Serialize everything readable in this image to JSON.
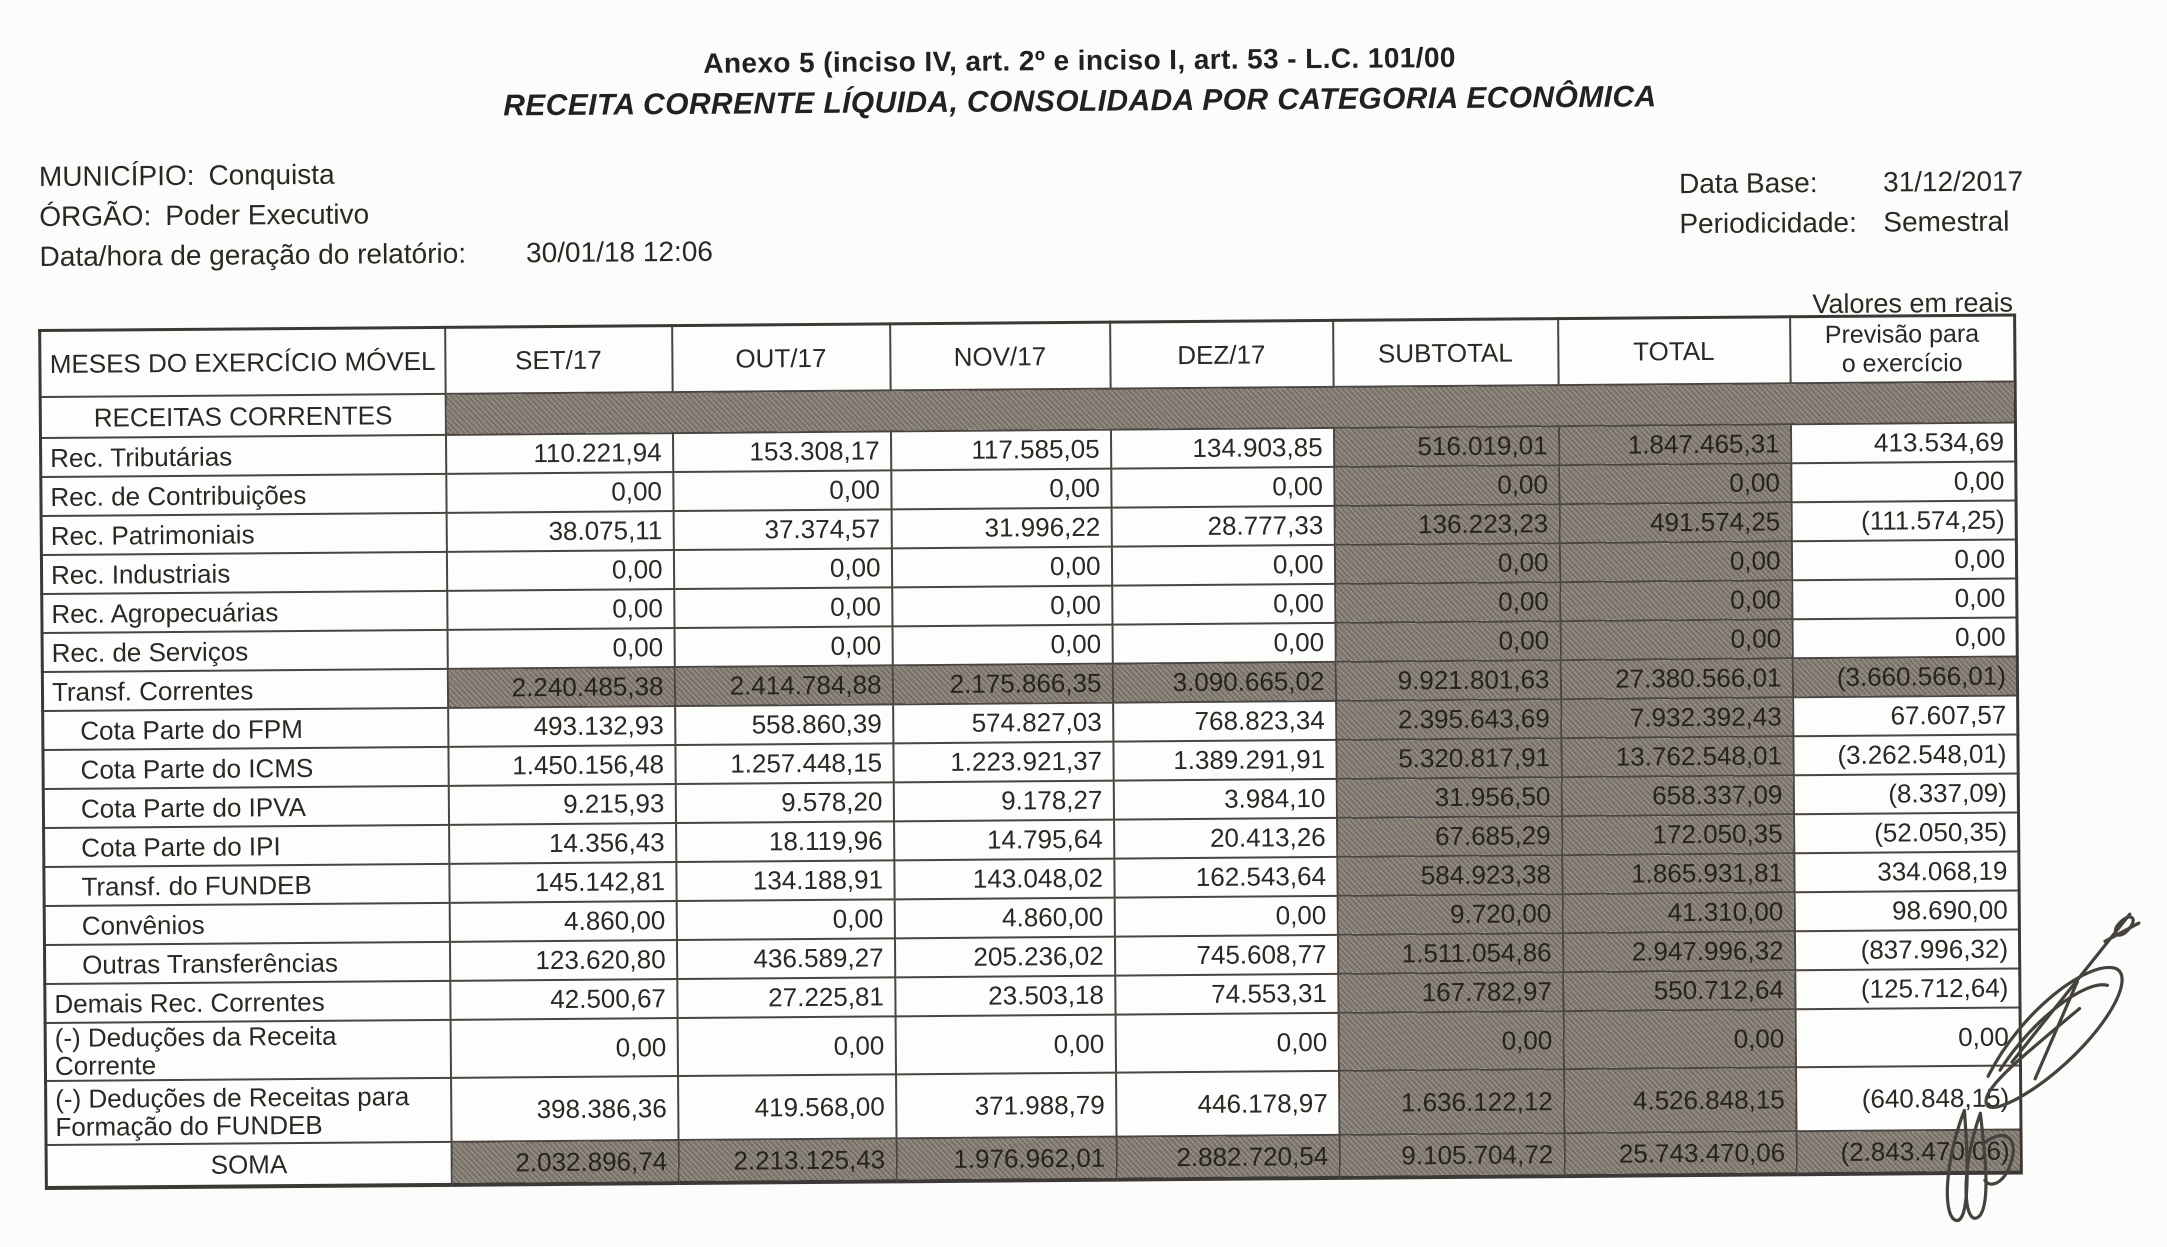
{
  "title": {
    "line1": "Anexo 5 (inciso IV, art. 2º e inciso I, art. 53 - L.C. 101/00",
    "line2": "RECEITA CORRENTE LÍQUIDA, CONSOLIDADA POR CATEGORIA ECONÔMICA"
  },
  "info": {
    "municipio_label": "MUNICÍPIO:",
    "municipio": "Conquista",
    "orgao_label": "ÓRGÃO:",
    "orgao": "Poder Executivo",
    "gerado_label": "Data/hora de geração do relatório:",
    "gerado": "30/01/18 12:06",
    "database_label": "Data Base:",
    "database": "31/12/2017",
    "period_label": "Periodicidade:",
    "period": "Semestral",
    "valores_note": "Valores em reais"
  },
  "table": {
    "col_headers": [
      "MESES DO EXERCÍCIO MÓVEL",
      "SET/17",
      "OUT/17",
      "NOV/17",
      "DEZ/17",
      "SUBTOTAL",
      "TOTAL",
      "Previsão para\no exercício"
    ],
    "section_label": "RECEITAS CORRENTES",
    "rows": [
      {
        "label": "Rec. Tributárias",
        "indent": 0,
        "shade": "st",
        "values": [
          "110.221,94",
          "153.308,17",
          "117.585,05",
          "134.903,85",
          "516.019,01",
          "1.847.465,31",
          "413.534,69"
        ]
      },
      {
        "label": "Rec. de Contribuições",
        "indent": 0,
        "shade": "st",
        "values": [
          "0,00",
          "0,00",
          "0,00",
          "0,00",
          "0,00",
          "0,00",
          "0,00"
        ]
      },
      {
        "label": "Rec. Patrimoniais",
        "indent": 0,
        "shade": "st",
        "values": [
          "38.075,11",
          "37.374,57",
          "31.996,22",
          "28.777,33",
          "136.223,23",
          "491.574,25",
          "(111.574,25)"
        ]
      },
      {
        "label": "Rec. Industriais",
        "indent": 0,
        "shade": "st",
        "values": [
          "0,00",
          "0,00",
          "0,00",
          "0,00",
          "0,00",
          "0,00",
          "0,00"
        ]
      },
      {
        "label": "Rec. Agropecuárias",
        "indent": 0,
        "shade": "st",
        "values": [
          "0,00",
          "0,00",
          "0,00",
          "0,00",
          "0,00",
          "0,00",
          "0,00"
        ]
      },
      {
        "label": "Rec. de Serviços",
        "indent": 0,
        "shade": "st",
        "values": [
          "0,00",
          "0,00",
          "0,00",
          "0,00",
          "0,00",
          "0,00",
          "0,00"
        ]
      },
      {
        "label": "Transf. Correntes",
        "indent": 0,
        "shade": "all",
        "values": [
          "2.240.485,38",
          "2.414.784,88",
          "2.175.866,35",
          "3.090.665,02",
          "9.921.801,63",
          "27.380.566,01",
          "(3.660.566,01)"
        ]
      },
      {
        "label": "Cota Parte do FPM",
        "indent": 1,
        "shade": "st",
        "values": [
          "493.132,93",
          "558.860,39",
          "574.827,03",
          "768.823,34",
          "2.395.643,69",
          "7.932.392,43",
          "67.607,57"
        ]
      },
      {
        "label": "Cota Parte do ICMS",
        "indent": 1,
        "shade": "st",
        "values": [
          "1.450.156,48",
          "1.257.448,15",
          "1.223.921,37",
          "1.389.291,91",
          "5.320.817,91",
          "13.762.548,01",
          "(3.262.548,01)"
        ]
      },
      {
        "label": "Cota Parte do IPVA",
        "indent": 1,
        "shade": "st",
        "values": [
          "9.215,93",
          "9.578,20",
          "9.178,27",
          "3.984,10",
          "31.956,50",
          "658.337,09",
          "(8.337,09)"
        ]
      },
      {
        "label": "Cota Parte do IPI",
        "indent": 1,
        "shade": "st",
        "values": [
          "14.356,43",
          "18.119,96",
          "14.795,64",
          "20.413,26",
          "67.685,29",
          "172.050,35",
          "(52.050,35)"
        ]
      },
      {
        "label": "Transf. do FUNDEB",
        "indent": 1,
        "shade": "st",
        "values": [
          "145.142,81",
          "134.188,91",
          "143.048,02",
          "162.543,64",
          "584.923,38",
          "1.865.931,81",
          "334.068,19"
        ]
      },
      {
        "label": "Convênios",
        "indent": 1,
        "shade": "st",
        "values": [
          "4.860,00",
          "0,00",
          "4.860,00",
          "0,00",
          "9.720,00",
          "41.310,00",
          "98.690,00"
        ]
      },
      {
        "label": "Outras Transferências",
        "indent": 1,
        "shade": "st",
        "values": [
          "123.620,80",
          "436.589,27",
          "205.236,02",
          "745.608,77",
          "1.511.054,86",
          "2.947.996,32",
          "(837.996,32)"
        ]
      },
      {
        "label": "Demais Rec. Correntes",
        "indent": 0,
        "shade": "st",
        "values": [
          "42.500,67",
          "27.225,81",
          "23.503,18",
          "74.553,31",
          "167.782,97",
          "550.712,64",
          "(125.712,64)"
        ]
      },
      {
        "label": "(-) Deduções da Receita Corrente",
        "indent": 0,
        "shade": "st",
        "values": [
          "0,00",
          "0,00",
          "0,00",
          "0,00",
          "0,00",
          "0,00",
          "0,00"
        ]
      },
      {
        "label": "(-) Deduções de Receitas para Formação do FUNDEB",
        "indent": 0,
        "shade": "st",
        "tall": true,
        "values": [
          "398.386,36",
          "419.568,00",
          "371.988,79",
          "446.178,97",
          "1.636.122,12",
          "4.526.848,15",
          "(640.848,15)"
        ]
      },
      {
        "label": "SOMA",
        "indent": 0,
        "shade": "all",
        "soma": true,
        "center": true,
        "values": [
          "2.032.896,74",
          "2.213.125,43",
          "1.976.962,01",
          "2.882.720,54",
          "9.105.704,72",
          "25.743.470,06",
          "(2.843.470,06)"
        ]
      }
    ]
  }
}
